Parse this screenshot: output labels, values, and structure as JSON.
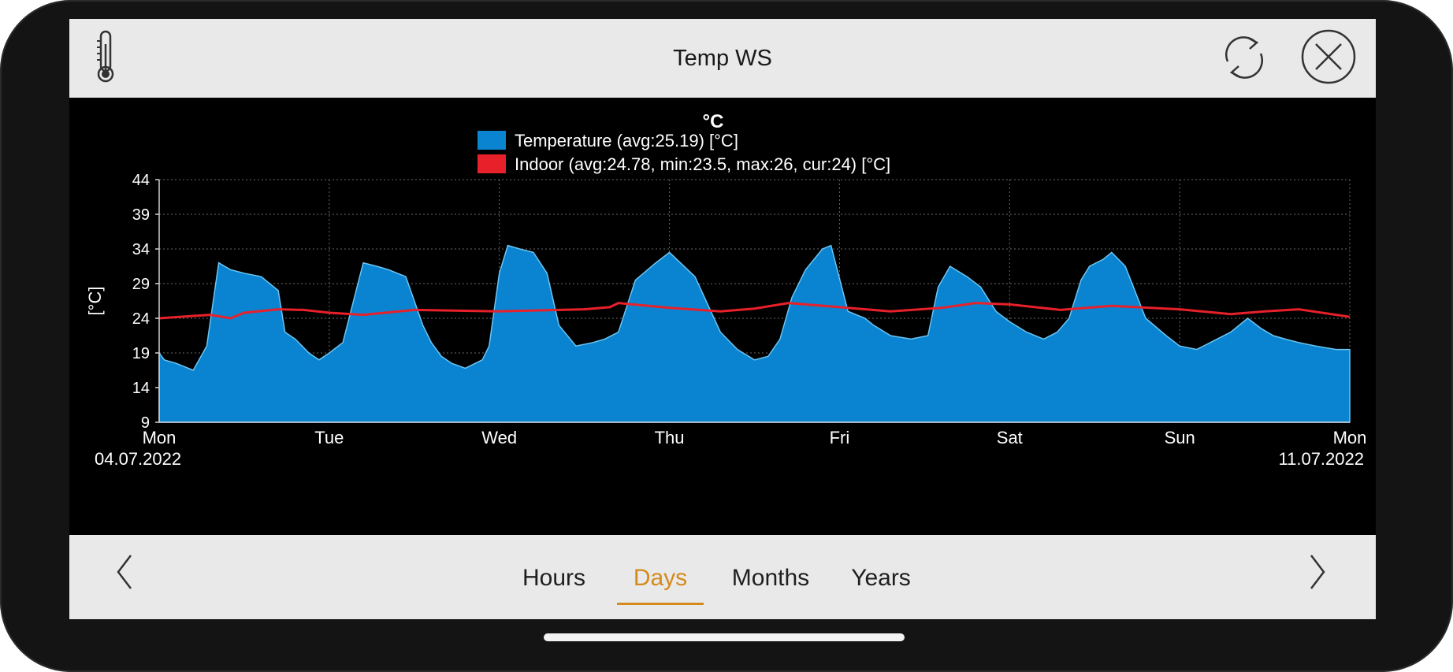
{
  "header": {
    "title": "Temp WS",
    "left_icon": "thermometer-icon",
    "refresh_icon": "refresh-icon",
    "close_icon": "close-icon"
  },
  "footer": {
    "tabs": [
      {
        "label": "Hours",
        "active": false
      },
      {
        "label": "Days",
        "active": true
      },
      {
        "label": "Months",
        "active": false
      },
      {
        "label": "Years",
        "active": false
      }
    ],
    "prev_icon": "chevron-left-icon",
    "next_icon": "chevron-right-icon",
    "accent_color": "#d48a1c"
  },
  "chart_data": {
    "type": "area",
    "title": "°C",
    "ylabel": "[°C]",
    "ylim": [
      9,
      44
    ],
    "yticks": [
      9,
      14,
      19,
      24,
      29,
      34,
      39,
      44
    ],
    "xlim": [
      0,
      7
    ],
    "xticks": [
      {
        "x": 0,
        "label": "Mon",
        "date": "04.07.2022"
      },
      {
        "x": 1,
        "label": "Tue"
      },
      {
        "x": 2,
        "label": "Wed"
      },
      {
        "x": 3,
        "label": "Thu"
      },
      {
        "x": 4,
        "label": "Fri"
      },
      {
        "x": 5,
        "label": "Sat"
      },
      {
        "x": 6,
        "label": "Sun"
      },
      {
        "x": 7,
        "label": "Mon",
        "date": "11.07.2022"
      }
    ],
    "grid": true,
    "legend_position": "top-center",
    "series": [
      {
        "name": "Temperature (avg:25.19) [°C]",
        "type": "area",
        "color": "#0a84d0",
        "x": [
          0,
          0.03,
          0.1,
          0.2,
          0.28,
          0.35,
          0.42,
          0.5,
          0.6,
          0.7,
          0.74,
          0.8,
          0.88,
          0.94,
          1.0,
          1.08,
          1.2,
          1.28,
          1.35,
          1.45,
          1.55,
          1.6,
          1.66,
          1.72,
          1.8,
          1.9,
          1.94,
          2.0,
          2.05,
          2.12,
          2.2,
          2.28,
          2.35,
          2.45,
          2.55,
          2.62,
          2.7,
          2.8,
          2.92,
          3.0,
          3.15,
          3.3,
          3.4,
          3.5,
          3.58,
          3.65,
          3.72,
          3.8,
          3.9,
          3.95,
          4.05,
          4.15,
          4.2,
          4.3,
          4.42,
          4.52,
          4.58,
          4.65,
          4.75,
          4.83,
          4.92,
          5.0,
          5.1,
          5.2,
          5.28,
          5.35,
          5.42,
          5.47,
          5.55,
          5.6,
          5.68,
          5.8,
          5.92,
          6.0,
          6.1,
          6.18,
          6.3,
          6.4,
          6.48,
          6.55,
          6.62,
          6.7,
          6.8,
          6.92,
          7.0
        ],
        "values": [
          19,
          18,
          17.5,
          16.5,
          20,
          32,
          31,
          30.5,
          30,
          28,
          22,
          21,
          19,
          18,
          19,
          20.5,
          32,
          31.5,
          31,
          30,
          23,
          20.5,
          18.5,
          17.5,
          16.8,
          18,
          20,
          30.5,
          34.5,
          34,
          33.5,
          30.5,
          23,
          20,
          20.5,
          21,
          22,
          29.5,
          32,
          33.5,
          30,
          22,
          19.5,
          18,
          18.5,
          21,
          27,
          31,
          34,
          34.5,
          25,
          24,
          23,
          21.5,
          21,
          21.5,
          28.5,
          31.5,
          30,
          28.5,
          25,
          23.5,
          22,
          21,
          22,
          24,
          29.5,
          31.5,
          32.5,
          33.5,
          31.5,
          24,
          21.5,
          20,
          19.5,
          20.5,
          22,
          24,
          22.5,
          21.5,
          21,
          20.5,
          20,
          19.5,
          19.5
        ]
      },
      {
        "name": "Indoor (avg:24.78, min:23.5, max:26, cur:24) [°C]",
        "type": "line",
        "color": "#e8202a",
        "x": [
          0,
          0.3,
          0.42,
          0.5,
          0.7,
          0.85,
          1.0,
          1.2,
          1.5,
          2.0,
          2.5,
          2.65,
          2.7,
          3.0,
          3.3,
          3.5,
          3.7,
          4.0,
          4.3,
          4.6,
          4.8,
          5.0,
          5.3,
          5.6,
          6.0,
          6.3,
          6.5,
          6.7,
          7.0
        ],
        "values": [
          24,
          24.5,
          24,
          24.8,
          25.3,
          25.2,
          24.8,
          24.5,
          25.2,
          25,
          25.3,
          25.6,
          26.2,
          25.5,
          25,
          25.4,
          26.2,
          25.6,
          25,
          25.5,
          26.2,
          26,
          25.2,
          25.8,
          25.3,
          24.6,
          25,
          25.3,
          24.2
        ]
      }
    ]
  }
}
